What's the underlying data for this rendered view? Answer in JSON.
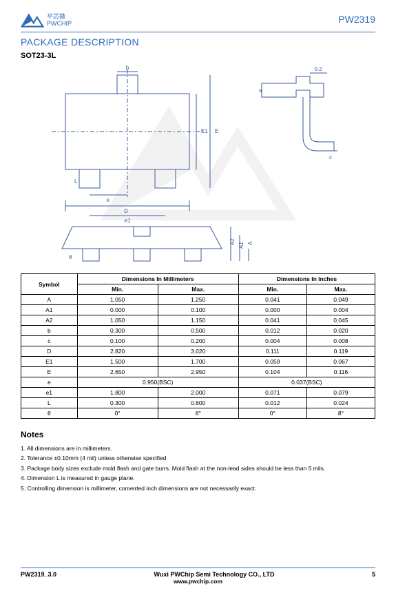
{
  "header": {
    "brand_cn": "平芯微",
    "brand_en": "PWCHIP",
    "part_number": "PW2319"
  },
  "section_title": "PACKAGE DESCRIPTION",
  "package_name": "SOT23-3L",
  "diagram": {
    "labels": [
      "a",
      "b",
      "c",
      "D",
      "E",
      "E1",
      "e",
      "e1",
      "L",
      "θ",
      "A",
      "A1",
      "A2",
      "0.2"
    ]
  },
  "table": {
    "header_symbol": "Symbol",
    "header_mm": "Dimensions In Millimeters",
    "header_in": "Dimensions In Inches",
    "sub_min": "Min.",
    "sub_max": "Max.",
    "rows": [
      {
        "sym": "A",
        "mm_min": "1.050",
        "mm_max": "1.250",
        "in_min": "0.041",
        "in_max": "0.049"
      },
      {
        "sym": "A1",
        "mm_min": "0.000",
        "mm_max": "0.100",
        "in_min": "0.000",
        "in_max": "0.004"
      },
      {
        "sym": "A2",
        "mm_min": "1.050",
        "mm_max": "1.150",
        "in_min": "0.041",
        "in_max": "0.045"
      },
      {
        "sym": "b",
        "mm_min": "0.300",
        "mm_max": "0.500",
        "in_min": "0.012",
        "in_max": "0.020"
      },
      {
        "sym": "c",
        "mm_min": "0.100",
        "mm_max": "0.200",
        "in_min": "0.004",
        "in_max": "0.008"
      },
      {
        "sym": "D",
        "mm_min": "2.820",
        "mm_max": "3.020",
        "in_min": "0.111",
        "in_max": "0.119"
      },
      {
        "sym": "E1",
        "mm_min": "1.500",
        "mm_max": "1.700",
        "in_min": "0.059",
        "in_max": "0.067"
      },
      {
        "sym": "E",
        "mm_min": "2.650",
        "mm_max": "2.950",
        "in_min": "0.104",
        "in_max": "0.116"
      }
    ],
    "bsc_row": {
      "sym": "e",
      "mm": "0.950(BSC)",
      "in": "0.037(BSC)"
    },
    "rows2": [
      {
        "sym": "e1",
        "mm_min": "1.800",
        "mm_max": "2.000",
        "in_min": "0.071",
        "in_max": "0.079"
      },
      {
        "sym": "L",
        "mm_min": "0.300",
        "mm_max": "0.600",
        "in_min": "0.012",
        "in_max": "0.024"
      },
      {
        "sym": "θ",
        "mm_min": "0°",
        "mm_max": "8°",
        "in_min": "0°",
        "in_max": "8°"
      }
    ]
  },
  "notes_title": "Notes",
  "notes": [
    "1. All dimensions are in millimeters.",
    "2. Tolerance ±0.10mm (4 mil) unless otherwise specified",
    "3. Package body sizes exclude mold flash and gate burrs. Mold flash at the non-lead sides should be less than 5 mils.",
    "4. Dimension L is measured in gauge plane.",
    "5. Controlling dimension is millimeter, converted inch dimensions are not necessarily exact."
  ],
  "footer": {
    "doc_rev": "PW2319_3.0",
    "company": "Wuxi PWChip Semi Technology CO., LTD",
    "url": "www.pwchip.com",
    "page": "5"
  },
  "colors": {
    "brand": "#2c6bb5",
    "line": "#2c6bb5"
  }
}
